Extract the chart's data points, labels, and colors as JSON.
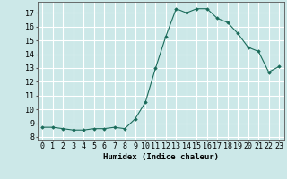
{
  "x": [
    0,
    1,
    2,
    3,
    4,
    5,
    6,
    7,
    8,
    9,
    10,
    11,
    12,
    13,
    14,
    15,
    16,
    17,
    18,
    19,
    20,
    21,
    22,
    23
  ],
  "y": [
    8.7,
    8.7,
    8.6,
    8.5,
    8.5,
    8.6,
    8.6,
    8.7,
    8.6,
    9.3,
    10.5,
    13.0,
    15.3,
    17.3,
    17.0,
    17.3,
    17.3,
    16.6,
    16.3,
    15.5,
    14.5,
    14.2,
    12.7,
    13.1
  ],
  "xlabel": "Humidex (Indice chaleur)",
  "ylabel": "",
  "xlim": [
    -0.5,
    23.5
  ],
  "ylim": [
    7.8,
    17.8
  ],
  "yticks": [
    8,
    9,
    10,
    11,
    12,
    13,
    14,
    15,
    16,
    17
  ],
  "xticks": [
    0,
    1,
    2,
    3,
    4,
    5,
    6,
    7,
    8,
    9,
    10,
    11,
    12,
    13,
    14,
    15,
    16,
    17,
    18,
    19,
    20,
    21,
    22,
    23
  ],
  "line_color": "#1a6b5a",
  "marker": "D",
  "marker_size": 1.8,
  "bg_color": "#cce8e8",
  "grid_color": "#ffffff",
  "label_fontsize": 6.5,
  "tick_fontsize": 6.0
}
